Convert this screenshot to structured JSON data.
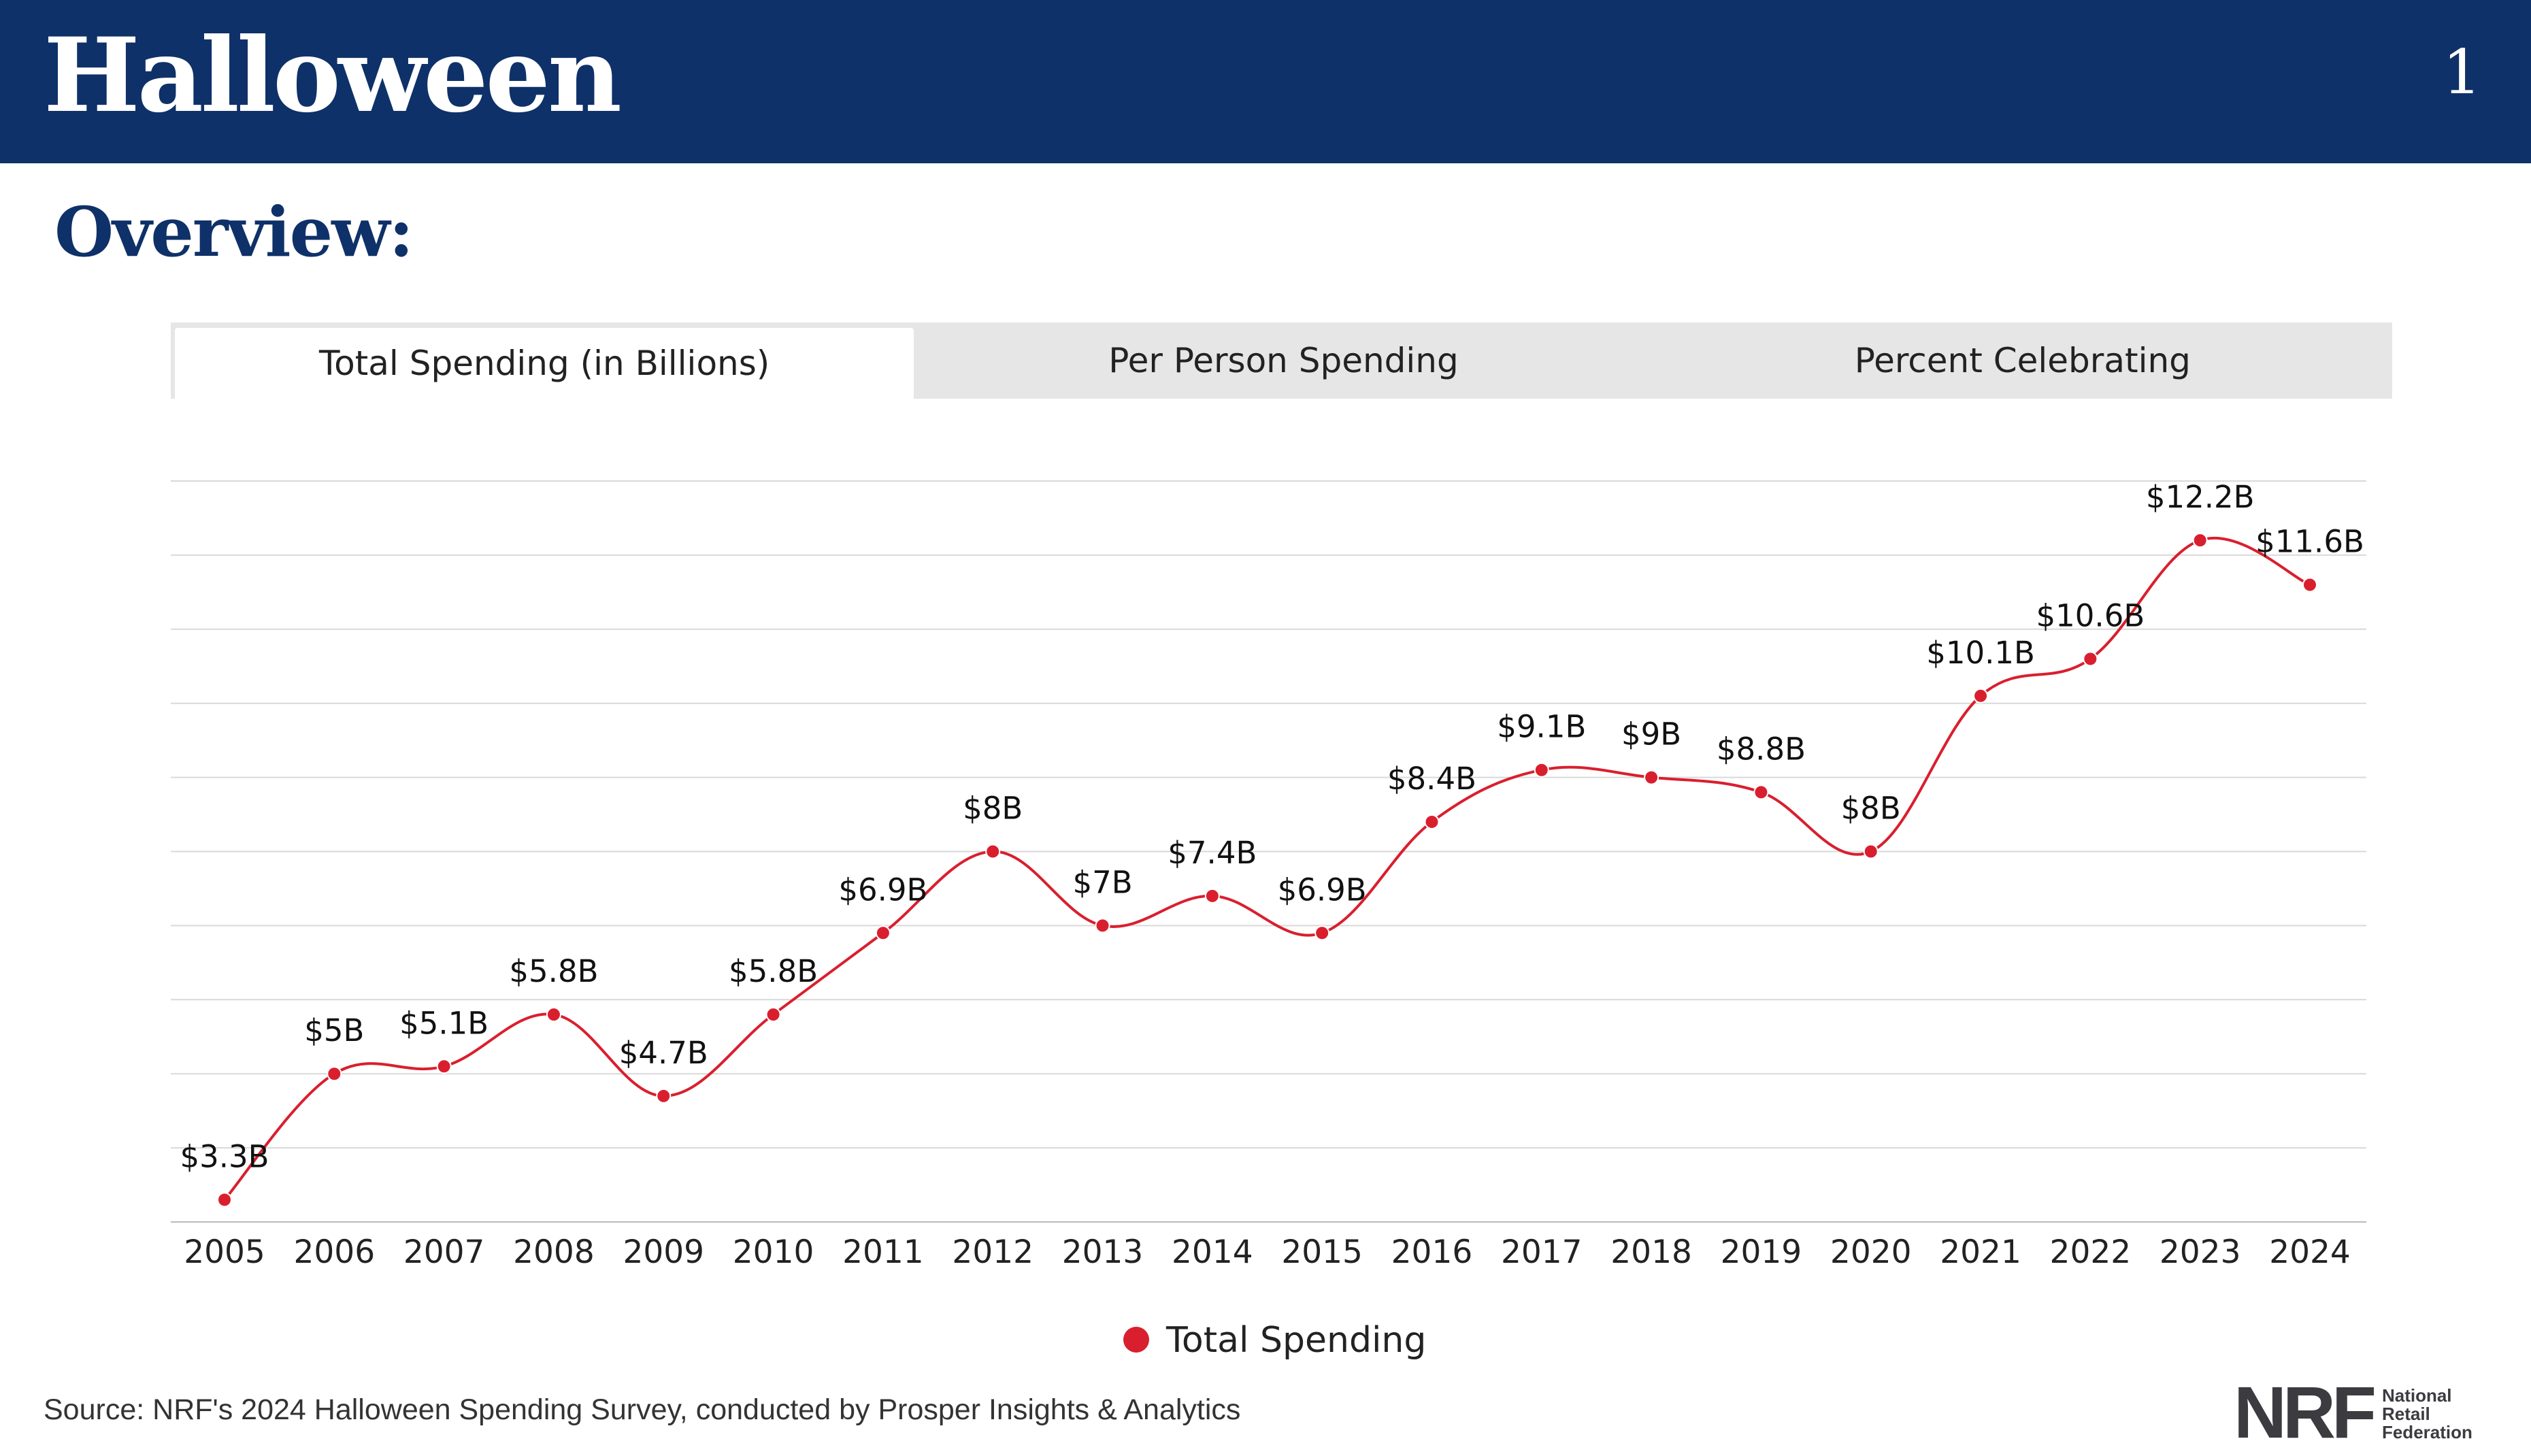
{
  "header": {
    "title": "Halloween",
    "page_number": "1"
  },
  "section_title": "Overview:",
  "tabs": [
    {
      "label": "Total Spending (in Billions)",
      "active": true
    },
    {
      "label": "Per Person Spending",
      "active": false
    },
    {
      "label": "Percent Celebrating",
      "active": false
    }
  ],
  "chart_data": {
    "type": "line",
    "title": "",
    "xlabel": "",
    "ylabel": "",
    "ylim": [
      3,
      13
    ],
    "grid": true,
    "legend_placement": "bottom-center",
    "categories": [
      "2005",
      "2006",
      "2007",
      "2008",
      "2009",
      "2010",
      "2011",
      "2012",
      "2013",
      "2014",
      "2015",
      "2016",
      "2017",
      "2018",
      "2019",
      "2020",
      "2021",
      "2022",
      "2023",
      "2024"
    ],
    "series": [
      {
        "name": "Total Spending",
        "color": "#d91f2e",
        "values": [
          3.3,
          5.0,
          5.1,
          5.8,
          4.7,
          5.8,
          6.9,
          8.0,
          7.0,
          7.4,
          6.9,
          8.4,
          9.1,
          9.0,
          8.8,
          8.0,
          10.1,
          10.6,
          12.2,
          11.6
        ],
        "labels": [
          "$3.3B",
          "$5B",
          "$5.1B",
          "$5.8B",
          "$4.7B",
          "$5.8B",
          "$6.9B",
          "$8B",
          "$7B",
          "$7.4B",
          "$6.9B",
          "$8.4B",
          "$9.1B",
          "$9B",
          "$8.8B",
          "$8B",
          "$10.1B",
          "$10.6B",
          "$12.2B",
          "$11.6B"
        ]
      }
    ]
  },
  "source": "Source: NRF's 2024 Halloween Spending Survey, conducted by Prosper Insights & Analytics",
  "logo": {
    "mark": "NRF",
    "line1": "National",
    "line2": "Retail",
    "line3": "Federation"
  }
}
